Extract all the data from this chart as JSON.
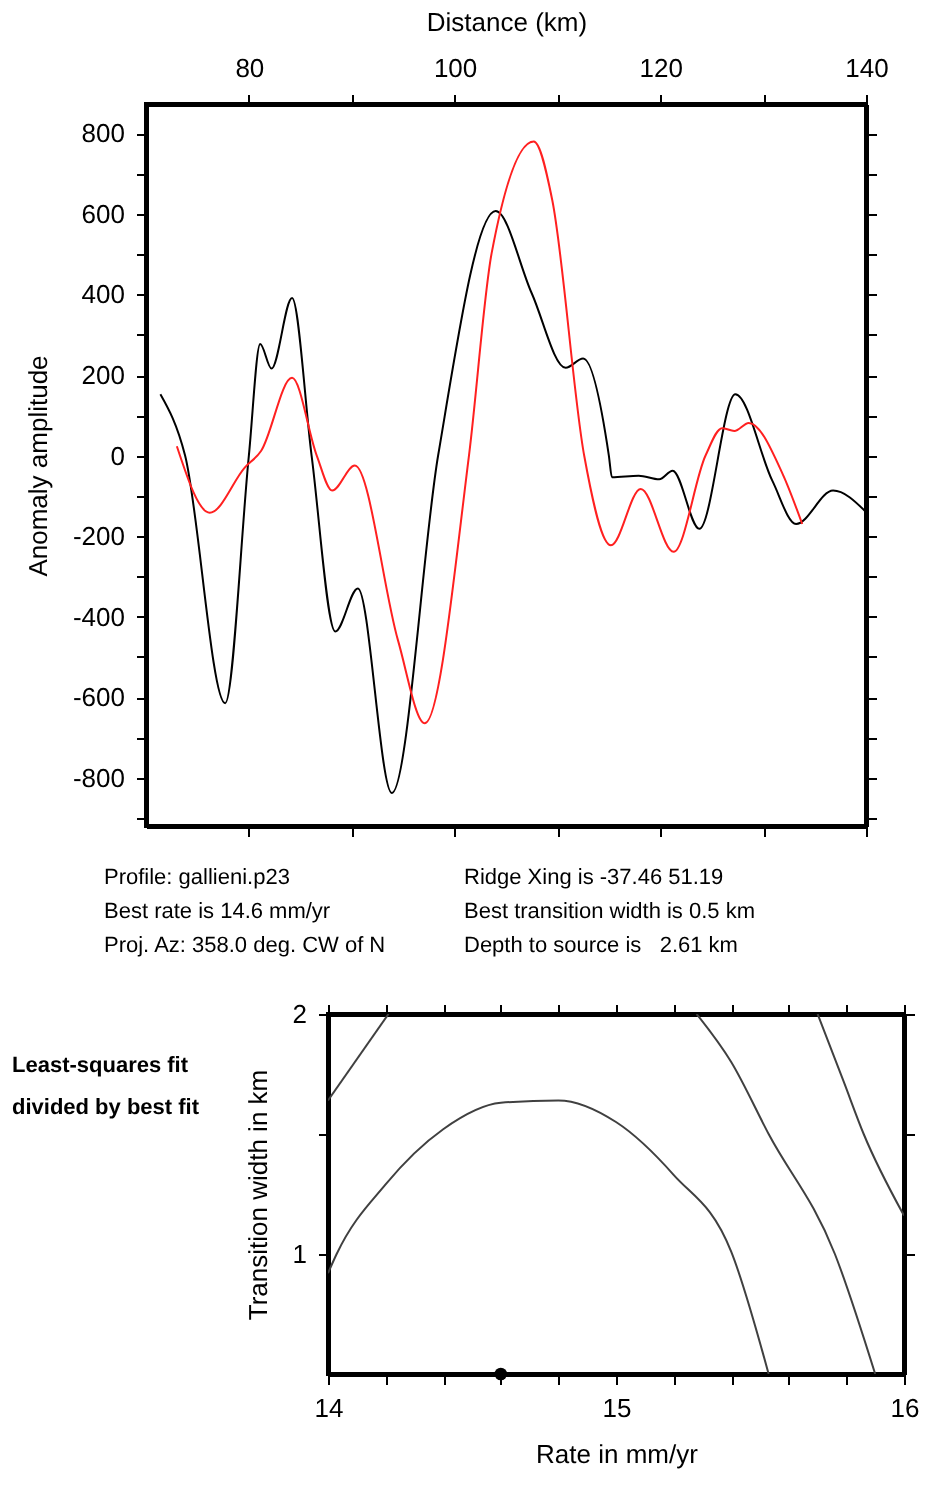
{
  "chart_data": [
    {
      "type": "line",
      "xlabel": "Distance (km)",
      "ylabel": "Anomaly amplitude",
      "xlim": [
        70,
        140
      ],
      "ylim": [
        -920,
        873
      ],
      "xticks": [
        80,
        {
          "value": 90,
          "label": null
        },
        100,
        {
          "value": 110,
          "label": null
        },
        120,
        {
          "value": 130,
          "label": null
        },
        140
      ],
      "yticks": [
        {
          "value": -900,
          "label": null
        },
        -800,
        {
          "value": -700,
          "label": null
        },
        -600,
        {
          "value": -500,
          "label": null
        },
        -400,
        {
          "value": -300,
          "label": null
        },
        -200,
        {
          "value": -100,
          "label": null
        },
        0,
        {
          "value": 100,
          "label": null
        },
        200,
        {
          "value": 300,
          "label": null
        },
        400,
        {
          "value": 500,
          "label": null
        },
        600,
        {
          "value": 700,
          "label": null
        },
        800
      ],
      "grid": false,
      "series": [
        {
          "color": "#000000",
          "x": [
            71.4,
            73.8,
            77.7,
            80.0,
            81.1,
            82.2,
            84.2,
            86.1,
            88.4,
            90.6,
            93.9,
            98.4,
            104.0,
            107.5,
            110.8,
            112.5,
            115.0,
            115.3,
            117.9,
            119.9,
            121.2,
            123.8,
            127.3,
            130.9,
            133.2,
            136.8,
            140.0
          ],
          "values": [
            152,
            0,
            -615,
            0,
            277,
            216,
            391,
            0,
            -437,
            -330,
            -838,
            0,
            607,
            403,
            218,
            241,
            0,
            -54,
            -50,
            -59,
            -38,
            -182,
            152,
            -63,
            -170,
            -87,
            -140
          ]
        },
        {
          "color": "#ff2020",
          "x": [
            73.0,
            76.2,
            79.6,
            81.2,
            84.2,
            86.6,
            88.1,
            90.3,
            94.5,
            97.1,
            101.4,
            103.6,
            107.7,
            109.5,
            112.6,
            115.2,
            118.1,
            121.3,
            124.4,
            126.0,
            127.2,
            128.6,
            131.9,
            133.8
          ],
          "values": [
            23,
            -142,
            -30,
            12,
            193,
            0,
            -87,
            -25,
            -459,
            -665,
            0,
            502,
            780,
            634,
            0,
            -223,
            -83,
            -239,
            0,
            68,
            61,
            81,
            -46,
            -170
          ]
        }
      ],
      "annotations": [
        "Profile: gallieni.p23",
        "Ridge Xing is -37.46 51.19",
        "Best rate is 14.6 mm/yr",
        "Best transition width is 0.5 km",
        "Proj. Az: 358.0 deg. CW of N",
        "Depth to source is   2.61 km"
      ]
    },
    {
      "type": "line",
      "xlabel": "Rate in mm/yr",
      "ylabel": "Transition width in km",
      "xlim": [
        14,
        16
      ],
      "ylim": [
        0.5,
        2
      ],
      "xticks": [
        14,
        {
          "value": 14.2,
          "label": null
        },
        {
          "value": 14.4,
          "label": null
        },
        {
          "value": 14.6,
          "label": null
        },
        {
          "value": 14.8,
          "label": null
        },
        15,
        {
          "value": 15.2,
          "label": null
        },
        {
          "value": 15.4,
          "label": null
        },
        {
          "value": 15.6,
          "label": null
        },
        {
          "value": 15.8,
          "label": null
        },
        16
      ],
      "yticks": [
        1,
        {
          "value": 1.5,
          "label": null
        },
        2
      ],
      "grid": false,
      "series": [
        {
          "color": "#404040",
          "x": [
            14.0,
            14.21
          ],
          "values": [
            1.64,
            2.0
          ]
        },
        {
          "color": "#404040",
          "x": [
            14.0,
            14.03,
            14.2,
            14.4,
            14.6,
            14.8,
            15.0,
            15.2,
            15.4,
            15.53
          ],
          "values": [
            0.92,
            1.0,
            1.29,
            1.52,
            1.63,
            1.64,
            1.55,
            1.33,
            1.01,
            0.5
          ]
        },
        {
          "color": "#404040",
          "x": [
            15.28,
            15.4,
            15.53,
            15.76,
            15.9
          ],
          "values": [
            2.0,
            1.8,
            1.5,
            1.0,
            0.5
          ]
        },
        {
          "color": "#404040",
          "x": [
            15.7,
            15.79,
            15.86,
            16.0
          ],
          "values": [
            2.0,
            1.72,
            1.5,
            1.16
          ]
        },
        {
          "type": "scatter",
          "color": "#000000",
          "x": [
            14.6
          ],
          "values": [
            0.5
          ]
        }
      ],
      "annotations": [
        "Least-squares fit divided by best fit"
      ]
    }
  ]
}
